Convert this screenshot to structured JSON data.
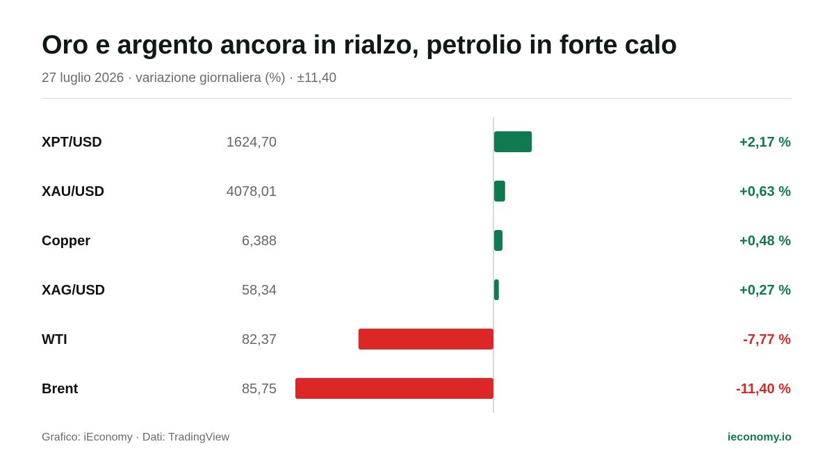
{
  "header": {
    "title": "Oro e argento ancora in rialzo, petrolio in forte calo",
    "subtitle": "27 luglio 2026 · variazione giornaliera (%) · ±11,40"
  },
  "footer": {
    "source": "Grafico: iEconomy · Dati: TradingView",
    "brand": "ieconomy.io"
  },
  "colors": {
    "positive": "#0f7a4f",
    "negative": "#dc2727",
    "axis": "#cccccc",
    "label": "#111111",
    "price": "#666666",
    "brand": "#0f7a4f"
  },
  "chart_data": {
    "type": "bar",
    "orientation": "horizontal",
    "categories": [
      "XPT/USD",
      "XAU/USD",
      "Copper",
      "XAG/USD",
      "WTI",
      "Brent"
    ],
    "prices": [
      "1624,70",
      "4078,01",
      "6,388",
      "58,34",
      "82,37",
      "85,75"
    ],
    "values": [
      2.17,
      0.63,
      0.48,
      0.27,
      -7.77,
      -11.4
    ],
    "value_labels": [
      "+2,17 %",
      "+0,63 %",
      "+0,48 %",
      "+0,27 %",
      "-7,77 %",
      "-11,40 %"
    ],
    "xlim": [
      -11.4,
      11.4
    ],
    "title": "Oro e argento ancora in rialzo, petrolio in forte calo",
    "xlabel": "",
    "ylabel": "",
    "grid": false,
    "legend": "none"
  }
}
